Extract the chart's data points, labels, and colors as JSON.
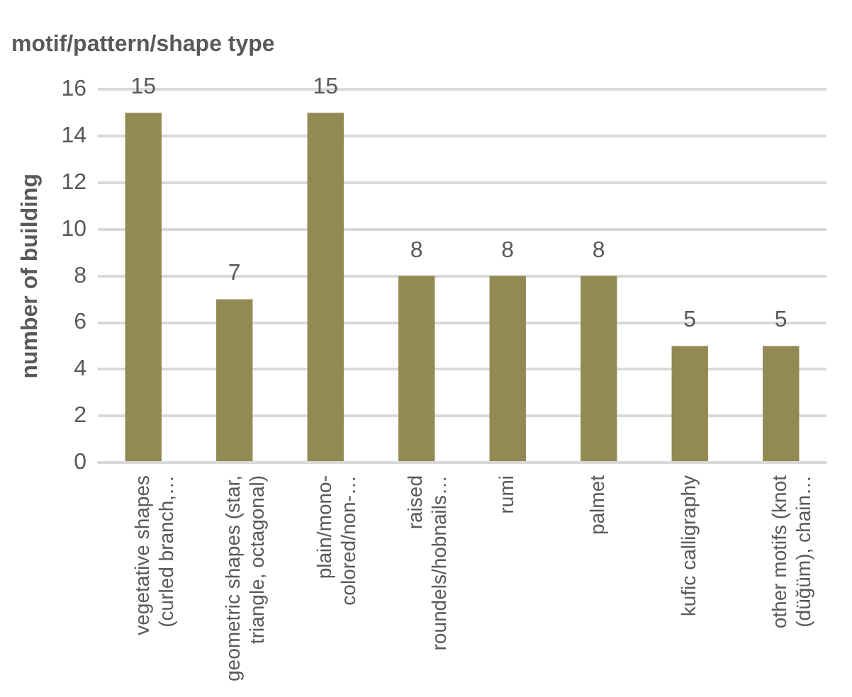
{
  "chart_data": {
    "type": "bar",
    "title": "motif/pattern/shape type",
    "ylabel": "number of building",
    "categories": [
      "vegetative shapes\n(curled branch,…",
      "geometric shapes (star,\ntriangle, octagonal)",
      "plain/mono-\ncolored/non-…",
      "raised\nroundels/hobnails…",
      "rumi",
      "palmet",
      "kufic calligraphy",
      "other motifs (knot\n(düğüm), chain…"
    ],
    "values": [
      15,
      7,
      15,
      8,
      8,
      8,
      5,
      5
    ],
    "color": "#938953",
    "ylim": [
      0,
      16
    ],
    "yticks": [
      0,
      2,
      4,
      6,
      8,
      10,
      12,
      14,
      16
    ],
    "grid": "y",
    "legend": false,
    "data_labels": true
  }
}
